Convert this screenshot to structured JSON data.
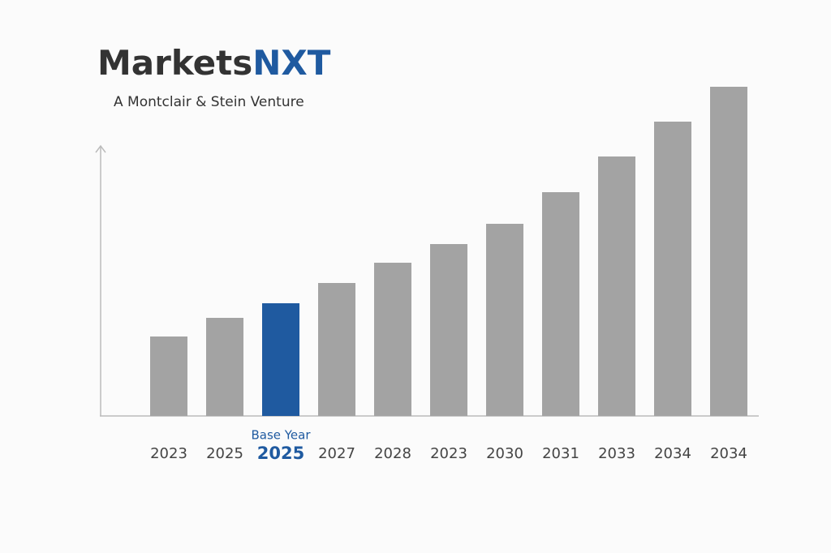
{
  "chart_data": {
    "type": "bar",
    "brand": {
      "main": "Markets",
      "accent": "NXT"
    },
    "subtitle": "A Montclair & Stein Venture",
    "categories": [
      "2023",
      "2025",
      "2025",
      "2027",
      "2028",
      "2023",
      "2030",
      "2031",
      "2033",
      "2034",
      "2034"
    ],
    "values": [
      98,
      121,
      139,
      164,
      189,
      212,
      237,
      276,
      320,
      363,
      406
    ],
    "color": "#a3a3a3",
    "highlight_color": "#1f5aa0",
    "highlight_index": 2,
    "highlight_label": "Base Year",
    "ylim": [
      0,
      406
    ]
  }
}
